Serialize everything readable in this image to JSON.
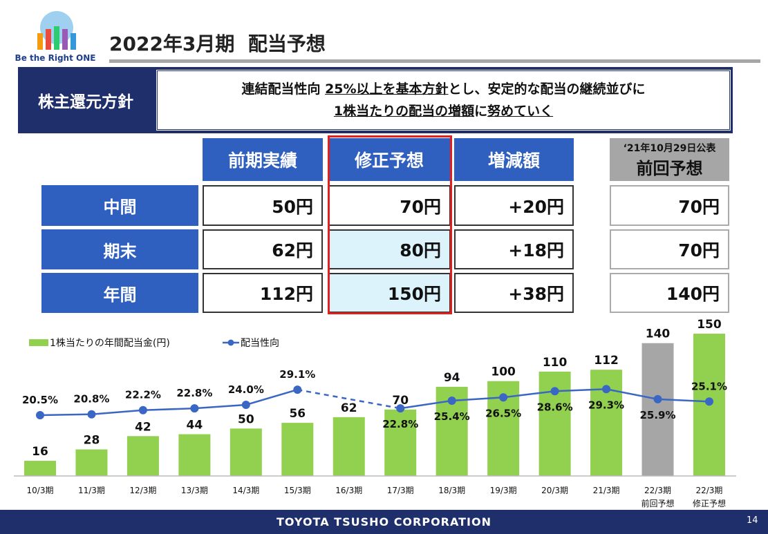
{
  "header": {
    "title": "2022年3月期  配当予想",
    "logo_text": "Be the Right ONE"
  },
  "policy": {
    "label": "株主還元方針",
    "line1": [
      "連結配当性向 ",
      "25%以上を基本方針",
      "とし、安定的な配当の継続並びに"
    ],
    "line2": [
      "1株当たりの配当の増額",
      "に",
      "努めていく"
    ]
  },
  "table": {
    "columns": [
      "前期実績",
      "修正予想",
      "増減額"
    ],
    "prior_note": "‘21年10月29日公表",
    "prior_column": "前回予想",
    "rows": [
      {
        "label": "中間",
        "cells": [
          "50円",
          "70円",
          "+20円",
          "70円"
        ]
      },
      {
        "label": "期末",
        "cells": [
          "62円",
          "80円",
          "+18円",
          "70円"
        ]
      },
      {
        "label": "年間",
        "cells": [
          "112円",
          "150円",
          "+38円",
          "140円"
        ]
      }
    ]
  },
  "chart_data": {
    "type": "combo",
    "categories": [
      "10/3期",
      "11/3期",
      "12/3期",
      "13/3期",
      "14/3期",
      "15/3期",
      "16/3期",
      "17/3期",
      "18/3期",
      "19/3期",
      "20/3期",
      "21/3期",
      "22/3期\n前回予想",
      "22/3期\n修正予想"
    ],
    "series": [
      {
        "name": "1株当たりの年間配当金(円)",
        "kind": "bar",
        "color": "#92d050",
        "colors": [
          "#92d050",
          "#92d050",
          "#92d050",
          "#92d050",
          "#92d050",
          "#92d050",
          "#92d050",
          "#92d050",
          "#92d050",
          "#92d050",
          "#92d050",
          "#92d050",
          "#a6a6a6",
          "#92d050"
        ],
        "values": [
          16,
          28,
          42,
          44,
          50,
          56,
          62,
          70,
          94,
          100,
          110,
          112,
          140,
          150
        ]
      },
      {
        "name": "配当性向",
        "kind": "line",
        "axis": "y2",
        "color": "#3a66c4",
        "values": [
          20.5,
          20.8,
          22.2,
          22.8,
          24.0,
          29.1,
          null,
          22.8,
          25.4,
          26.5,
          28.6,
          29.3,
          25.9,
          25.1
        ],
        "value_labels": [
          "20.5%",
          "20.8%",
          "22.2%",
          "22.8%",
          "24.0%",
          "29.1%",
          null,
          "22.8%",
          "25.4%",
          "26.5%",
          "28.6%",
          "29.3%",
          "25.9%",
          "25.1%"
        ]
      }
    ],
    "ylim": [
      0,
      150
    ],
    "y2lim": [
      0,
      48
    ]
  },
  "footer": {
    "company": "TOYOTA TSUSHO CORPORATION",
    "page": "14"
  }
}
